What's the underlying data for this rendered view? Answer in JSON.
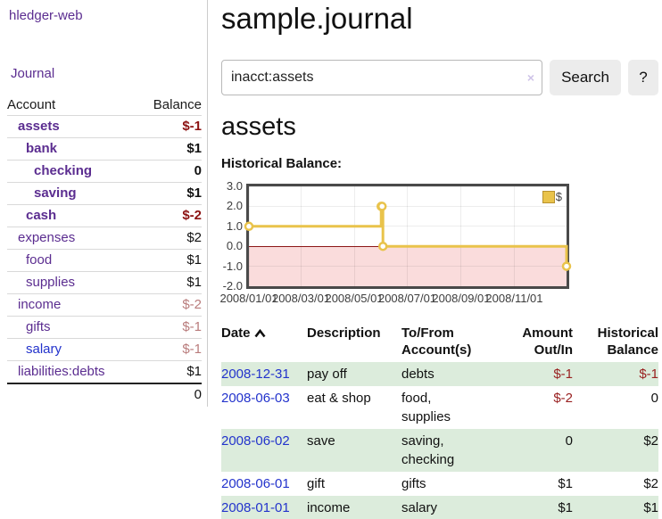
{
  "app": {
    "brand": "hledger-web"
  },
  "sidebar": {
    "journal_label": "Journal",
    "accounts_table": {
      "headers": {
        "account": "Account",
        "balance": "Balance"
      },
      "rows": [
        {
          "name": "assets",
          "depth": 1,
          "bold": true,
          "balance": "$-1",
          "balance_style": "neg",
          "link_style": "purple"
        },
        {
          "name": "bank",
          "depth": 2,
          "bold": true,
          "balance": "$1",
          "balance_style": "pos",
          "link_style": "purple"
        },
        {
          "name": "checking",
          "depth": 3,
          "bold": true,
          "balance": "0",
          "balance_style": "pos",
          "link_style": "purple"
        },
        {
          "name": "saving",
          "depth": 3,
          "bold": true,
          "balance": "$1",
          "balance_style": "pos",
          "link_style": "purple"
        },
        {
          "name": "cash",
          "depth": 2,
          "bold": true,
          "balance": "$-2",
          "balance_style": "neg",
          "link_style": "purple"
        },
        {
          "name": "expenses",
          "depth": 1,
          "bold": false,
          "balance": "$2",
          "balance_style": "pos",
          "link_style": "purple"
        },
        {
          "name": "food",
          "depth": 2,
          "bold": false,
          "balance": "$1",
          "balance_style": "pos",
          "link_style": "purple"
        },
        {
          "name": "supplies",
          "depth": 2,
          "bold": false,
          "balance": "$1",
          "balance_style": "pos",
          "link_style": "purple"
        },
        {
          "name": "income",
          "depth": 1,
          "bold": false,
          "balance": "$-2",
          "balance_style": "neg-light",
          "link_style": "purple"
        },
        {
          "name": "gifts",
          "depth": 2,
          "bold": false,
          "balance": "$-1",
          "balance_style": "neg-light",
          "link_style": "purple"
        },
        {
          "name": "salary",
          "depth": 2,
          "bold": false,
          "balance": "$-1",
          "balance_style": "neg-light",
          "link_style": "blue"
        },
        {
          "name": "liabilities:debts",
          "depth": 1,
          "bold": false,
          "balance": "$1",
          "balance_style": "pos",
          "link_style": "purple"
        }
      ],
      "total": "0"
    }
  },
  "header": {
    "title": "sample.journal"
  },
  "search": {
    "value": "inacct:assets",
    "clear_icon": "×",
    "button": "Search",
    "help_button": "?"
  },
  "account_page": {
    "heading": "assets",
    "chart_label": "Historical Balance:"
  },
  "chart_data": {
    "type": "line",
    "step": true,
    "title": "Historical Balance",
    "series": [
      {
        "name": "$",
        "color": "#e9c34b",
        "points": [
          {
            "date": "2008-01-01",
            "value": 1
          },
          {
            "date": "2008-06-01",
            "value": 2
          },
          {
            "date": "2008-06-02",
            "value": 2
          },
          {
            "date": "2008-06-03",
            "value": 0
          },
          {
            "date": "2008-12-31",
            "value": -1
          }
        ]
      }
    ],
    "xlim": [
      "2008-01-01",
      "2008-12-31"
    ],
    "ylim": [
      -2,
      3
    ],
    "y_ticks": [
      {
        "v": 3,
        "label": "3.0"
      },
      {
        "v": 2,
        "label": "2.0"
      },
      {
        "v": 1,
        "label": "1.0"
      },
      {
        "v": 0,
        "label": "0.0"
      },
      {
        "v": -1,
        "label": "-1.0"
      },
      {
        "v": -2,
        "label": "-2.0"
      }
    ],
    "x_ticks": [
      {
        "date": "2008-01-01",
        "label": "2008/01/01"
      },
      {
        "date": "2008-03-01",
        "label": "2008/03/01"
      },
      {
        "date": "2008-05-01",
        "label": "2008/05/01"
      },
      {
        "date": "2008-07-01",
        "label": "2008/07/01"
      },
      {
        "date": "2008-09-01",
        "label": "2008/09/01"
      },
      {
        "date": "2008-11-01",
        "label": "2008/11/01"
      }
    ],
    "legend": {
      "label": "$",
      "position": "top-right"
    },
    "negative_region_fill": "#fadcdc",
    "zero_line_color": "#8c1717",
    "grid": true
  },
  "register_table": {
    "columns": [
      {
        "line1": "Date",
        "line2": ""
      },
      {
        "line1": "Description",
        "line2": ""
      },
      {
        "line1": "To/From",
        "line2": "Account(s)"
      },
      {
        "line1": "Amount",
        "line2": "Out/In"
      },
      {
        "line1": "Historical",
        "line2": "Balance"
      }
    ],
    "sort": {
      "column": "Date",
      "direction": "asc"
    },
    "rows": [
      {
        "date": "2008-12-31",
        "description": "pay off",
        "accounts": "debts",
        "amount": "$-1",
        "amount_neg": true,
        "balance": "$-1",
        "balance_neg": true
      },
      {
        "date": "2008-06-03",
        "description": "eat & shop",
        "accounts": "food, supplies",
        "amount": "$-2",
        "amount_neg": true,
        "balance": "0",
        "balance_neg": false
      },
      {
        "date": "2008-06-02",
        "description": "save",
        "accounts": "saving, checking",
        "amount": "0",
        "amount_neg": false,
        "balance": "$2",
        "balance_neg": false
      },
      {
        "date": "2008-06-01",
        "description": "gift",
        "accounts": "gifts",
        "amount": "$1",
        "amount_neg": false,
        "balance": "$2",
        "balance_neg": false
      },
      {
        "date": "2008-01-01",
        "description": "income",
        "accounts": "salary",
        "amount": "$1",
        "amount_neg": false,
        "balance": "$1",
        "balance_neg": false
      }
    ]
  },
  "colors": {
    "link_purple": "#5b2d90",
    "link_blue": "#2333cc",
    "negative": "#992121",
    "negative_bold": "#8c1212",
    "negative_light": "#b97c7c",
    "row_stripe_green": "#dcecdc",
    "series_gold": "#e9c34b",
    "negative_region_pink": "#fadcdc",
    "zero_line_red": "#8c1717",
    "chart_border_gray": "#4a4a4a",
    "button_gray": "#ececec"
  }
}
